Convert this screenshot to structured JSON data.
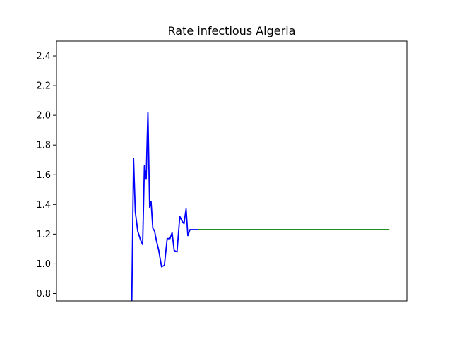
{
  "chart_data": {
    "type": "line",
    "title": "Rate infectious Algeria",
    "xlabel": "",
    "ylabel": "",
    "xlim": [
      0,
      100
    ],
    "ylim": [
      0.75,
      2.5
    ],
    "yticks": [
      0.8,
      1.0,
      1.2,
      1.4,
      1.6,
      1.8,
      2.0,
      2.2,
      2.4
    ],
    "ytick_labels": [
      "0.8",
      "1.0",
      "1.2",
      "1.4",
      "1.6",
      "1.8",
      "2.0",
      "2.2",
      "2.4"
    ],
    "x_tick_labels_shown": false,
    "grid": false,
    "series": [
      {
        "color": "#0000ff",
        "x": [
          21.5,
          22.0,
          22.5,
          23.2,
          24.0,
          24.6,
          25.1,
          25.6,
          26.1,
          26.6,
          27.0,
          27.5,
          28.0,
          28.5,
          29.2,
          30.0,
          30.8,
          31.6,
          32.4,
          33.0,
          33.6,
          34.4,
          35.2,
          35.8,
          36.4,
          37.0,
          37.5,
          38.1,
          38.8,
          39.5,
          40.0,
          40.5
        ],
        "y": [
          0.75,
          1.71,
          1.35,
          1.22,
          1.16,
          1.13,
          1.66,
          1.57,
          2.02,
          1.38,
          1.42,
          1.24,
          1.22,
          1.16,
          1.09,
          0.98,
          0.99,
          1.17,
          1.17,
          1.21,
          1.09,
          1.08,
          1.32,
          1.29,
          1.27,
          1.37,
          1.19,
          1.23,
          1.23,
          1.23,
          1.23,
          1.23
        ]
      },
      {
        "color": "#008000",
        "x": [
          40.5,
          95.0
        ],
        "y": [
          1.23,
          1.23
        ]
      }
    ]
  }
}
